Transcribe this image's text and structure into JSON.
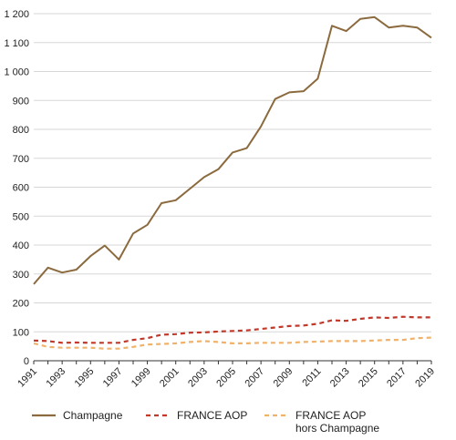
{
  "chart_data": {
    "type": "line",
    "title": "",
    "xlabel": "",
    "ylabel": "",
    "x": [
      1991,
      1992,
      1993,
      1994,
      1995,
      1996,
      1997,
      1998,
      1999,
      2000,
      2001,
      2002,
      2003,
      2004,
      2005,
      2006,
      2007,
      2008,
      2009,
      2010,
      2011,
      2012,
      2013,
      2014,
      2015,
      2016,
      2017,
      2018,
      2019
    ],
    "x_tick_labels": [
      "1991",
      "1993",
      "1995",
      "1997",
      "1999",
      "2001",
      "2003",
      "2005",
      "2007",
      "2009",
      "2011",
      "2013",
      "2015",
      "2017",
      "2019"
    ],
    "y_tick_labels": [
      "0",
      "100",
      "200",
      "300",
      "400",
      "500",
      "600",
      "700",
      "800",
      "900",
      "1 000",
      "1 100",
      "1 200"
    ],
    "ylim": [
      0,
      1200
    ],
    "grid": "horizontal",
    "legend_position": "bottom",
    "series": [
      {
        "name": "Champagne",
        "color": "#8b6a3e",
        "style": "solid",
        "values": [
          265,
          322,
          305,
          315,
          362,
          398,
          350,
          440,
          470,
          545,
          555,
          595,
          635,
          662,
          720,
          735,
          810,
          905,
          928,
          932,
          975,
          1158,
          1140,
          1182,
          1188,
          1152,
          1158,
          1152,
          1117
        ]
      },
      {
        "name": "FRANCE AOP",
        "color": "#c0392b",
        "style": "dashed",
        "values": [
          70,
          68,
          62,
          63,
          62,
          62,
          62,
          72,
          78,
          90,
          92,
          97,
          98,
          101,
          103,
          105,
          110,
          115,
          120,
          122,
          128,
          140,
          138,
          145,
          150,
          148,
          152,
          150,
          150
        ]
      },
      {
        "name_lines": [
          "FRANCE AOP",
          "hors Champagne"
        ],
        "color": "#f0b26a",
        "style": "dashed",
        "values": [
          60,
          48,
          45,
          45,
          45,
          42,
          42,
          48,
          56,
          58,
          60,
          65,
          68,
          65,
          60,
          60,
          62,
          62,
          62,
          65,
          66,
          68,
          68,
          68,
          70,
          72,
          72,
          78,
          80
        ]
      }
    ]
  }
}
